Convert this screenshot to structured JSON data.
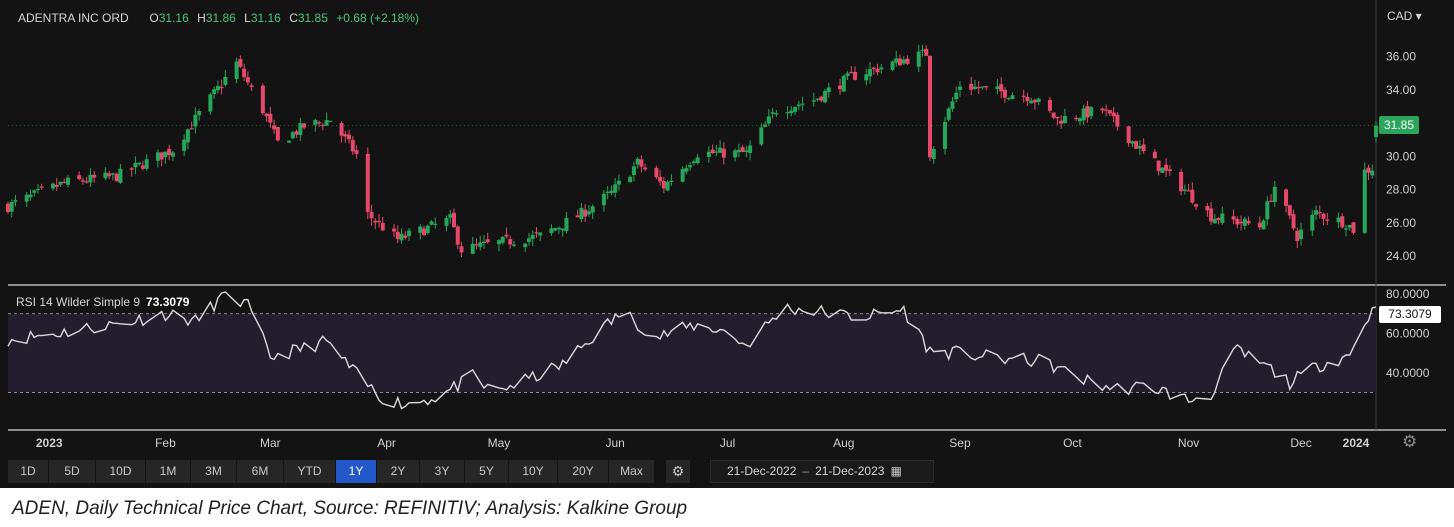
{
  "header": {
    "instrument": "ADENTRA INC ORD",
    "open_label": "O",
    "open_value": "31.16",
    "high_label": "H",
    "high_value": "31.86",
    "low_label": "L",
    "low_value": "31.16",
    "close_label": "C",
    "close_value": "31.85",
    "change": "+0.68 (+2.18%)",
    "currency": "CAD ▾"
  },
  "price_tag": "31.85",
  "rsi": {
    "label": "RSI 14 Wilder Simple 9",
    "value": "73.3079",
    "tag": "73.3079"
  },
  "toolbar": {
    "ranges": [
      "1D",
      "5D",
      "10D",
      "1M",
      "3M",
      "6M",
      "YTD",
      "1Y",
      "2Y",
      "3Y",
      "5Y",
      "10Y",
      "20Y",
      "Max"
    ],
    "active": "1Y",
    "date_from": "21-Dec-2022",
    "date_to": "21-Dec-2023",
    "separator": "–"
  },
  "caption": "ADEN, Daily Technical Price Chart, Source: REFINITIV; Analysis: Kalkine Group",
  "colors": {
    "up": "#26a65b",
    "down": "#e5486a",
    "background": "#131313",
    "rsi_band": "#241d2e",
    "active_button": "#2457c8"
  },
  "icons": {
    "currency_menu": "chevron-down-icon",
    "settings": "gear-icon",
    "calendar": "calendar-icon",
    "chart_settings": "gear-icon"
  },
  "chart_data": [
    {
      "type": "candlestick",
      "title": "ADENTRA INC ORD",
      "ylim": [
        22.8,
        37.6
      ],
      "y_ticks": [
        "36.00",
        "34.00",
        "32.00",
        "30.00",
        "28.00",
        "26.00",
        "24.00"
      ],
      "x_ticks": [
        "2023",
        "Feb",
        "Mar",
        "Apr",
        "May",
        "Jun",
        "Jul",
        "Aug",
        "Sep",
        "Oct",
        "Nov",
        "Dec",
        "2024"
      ],
      "x_range": [
        "2022-12-21",
        "2023-12-21"
      ],
      "close_path": [
        [
          "2022-12-21",
          27.0
        ],
        [
          "2023-01-05",
          28.4
        ],
        [
          "2023-01-19",
          28.8
        ],
        [
          "2023-02-03",
          30.4
        ],
        [
          "2023-02-20",
          35.6
        ],
        [
          "2023-02-27",
          32.8
        ],
        [
          "2023-03-03",
          30.8
        ],
        [
          "2023-03-10",
          31.8
        ],
        [
          "2023-03-17",
          32.2
        ],
        [
          "2023-03-24",
          30.1
        ],
        [
          "2023-03-27",
          26.5
        ],
        [
          "2023-04-04",
          25.0
        ],
        [
          "2023-04-18",
          26.2
        ],
        [
          "2023-04-21",
          24.4
        ],
        [
          "2023-05-01",
          24.8
        ],
        [
          "2023-05-12",
          25.2
        ],
        [
          "2023-05-22",
          26.4
        ],
        [
          "2023-05-31",
          27.8
        ],
        [
          "2023-06-07",
          29.6
        ],
        [
          "2023-06-14",
          28.2
        ],
        [
          "2023-06-23",
          30.2
        ],
        [
          "2023-07-06",
          30.2
        ],
        [
          "2023-07-14",
          32.8
        ],
        [
          "2023-07-24",
          33.4
        ],
        [
          "2023-08-03",
          34.8
        ],
        [
          "2023-08-17",
          35.8
        ],
        [
          "2023-08-23",
          36.2
        ],
        [
          "2023-08-24",
          30.2
        ],
        [
          "2023-09-01",
          34.3
        ],
        [
          "2023-09-14",
          33.8
        ],
        [
          "2023-09-20",
          33.6
        ],
        [
          "2023-09-27",
          32.2
        ],
        [
          "2023-10-09",
          32.8
        ],
        [
          "2023-10-20",
          30.2
        ],
        [
          "2023-10-31",
          28.0
        ],
        [
          "2023-11-07",
          26.4
        ],
        [
          "2023-11-20",
          25.8
        ],
        [
          "2023-11-24",
          28.2
        ],
        [
          "2023-11-30",
          25.2
        ],
        [
          "2023-12-05",
          26.6
        ],
        [
          "2023-12-13",
          26.0
        ],
        [
          "2023-12-15",
          25.6
        ],
        [
          "2023-12-18",
          29.1
        ],
        [
          "2023-12-20",
          29.3
        ],
        [
          "2023-12-21",
          31.85
        ]
      ],
      "last": {
        "open": 31.16,
        "high": 31.86,
        "low": 31.16,
        "close": 31.85,
        "change": 0.68,
        "change_pct": 2.18
      }
    },
    {
      "type": "line",
      "title": "RSI 14 Wilder Simple 9",
      "ylim": [
        12,
        82
      ],
      "y_ticks": [
        "80.0000",
        "60.0000",
        "40.0000"
      ],
      "reference_lines": [
        70,
        30
      ],
      "x_range": [
        "2022-12-21",
        "2023-12-21"
      ],
      "points": [
        [
          "2022-12-21",
          57
        ],
        [
          "2023-01-03",
          60
        ],
        [
          "2023-01-12",
          63
        ],
        [
          "2023-01-20",
          65
        ],
        [
          "2023-02-01",
          70
        ],
        [
          "2023-02-09",
          66
        ],
        [
          "2023-02-17",
          80
        ],
        [
          "2023-02-23",
          74
        ],
        [
          "2023-03-01",
          48
        ],
        [
          "2023-03-09",
          52
        ],
        [
          "2023-03-16",
          56
        ],
        [
          "2023-03-23",
          41
        ],
        [
          "2023-03-30",
          28
        ],
        [
          "2023-04-06",
          24
        ],
        [
          "2023-04-15",
          28
        ],
        [
          "2023-04-24",
          38
        ],
        [
          "2023-04-29",
          30
        ],
        [
          "2023-05-08",
          36
        ],
        [
          "2023-05-18",
          44
        ],
        [
          "2023-05-27",
          60
        ],
        [
          "2023-06-03",
          71
        ],
        [
          "2023-06-12",
          58
        ],
        [
          "2023-06-22",
          64
        ],
        [
          "2023-06-29",
          62
        ],
        [
          "2023-07-06",
          54
        ],
        [
          "2023-07-16",
          73
        ],
        [
          "2023-07-26",
          71
        ],
        [
          "2023-08-05",
          68
        ],
        [
          "2023-08-17",
          72
        ],
        [
          "2023-08-24",
          51
        ],
        [
          "2023-09-01",
          50
        ],
        [
          "2023-09-12",
          47
        ],
        [
          "2023-09-23",
          46
        ],
        [
          "2023-10-03",
          37
        ],
        [
          "2023-10-12",
          32
        ],
        [
          "2023-10-22",
          33
        ],
        [
          "2023-11-01",
          26
        ],
        [
          "2023-11-08",
          30
        ],
        [
          "2023-11-13",
          52
        ],
        [
          "2023-11-22",
          43
        ],
        [
          "2023-11-28",
          35
        ],
        [
          "2023-12-06",
          44
        ],
        [
          "2023-12-14",
          49
        ],
        [
          "2023-12-18",
          66
        ],
        [
          "2023-12-21",
          73.3079
        ]
      ]
    }
  ]
}
